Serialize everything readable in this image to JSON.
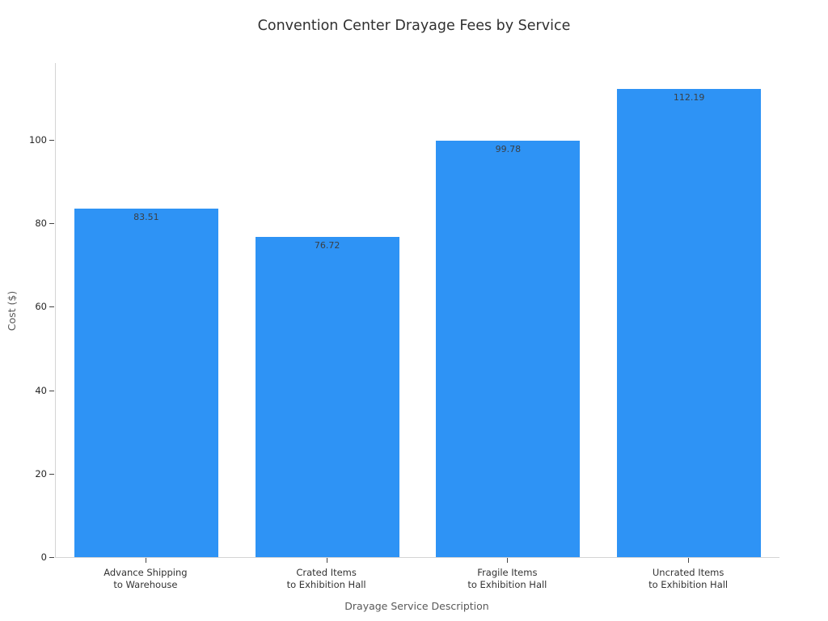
{
  "chart_data": {
    "type": "bar",
    "title": "Convention Center Drayage Fees by Service",
    "xlabel": "Drayage Service Description",
    "ylabel": "Cost ($)",
    "categories": [
      "Advance Shipping\nto Warehouse",
      "Crated Items\nto Exhibition Hall",
      "Fragile Items\nto Exhibition Hall",
      "Uncrated Items\nto Exhibition Hall"
    ],
    "values": [
      83.51,
      76.72,
      99.78,
      112.19
    ],
    "value_labels": [
      "83.51",
      "76.72",
      "99.78",
      "112.19"
    ],
    "yticks": [
      0,
      20,
      40,
      60,
      80,
      100
    ],
    "ylim": [
      0,
      118.4
    ],
    "grid": false,
    "legend": null,
    "bar_color": "#2e93f5",
    "value_label_color": "#3a3f44",
    "background_color": "#ffffff"
  }
}
